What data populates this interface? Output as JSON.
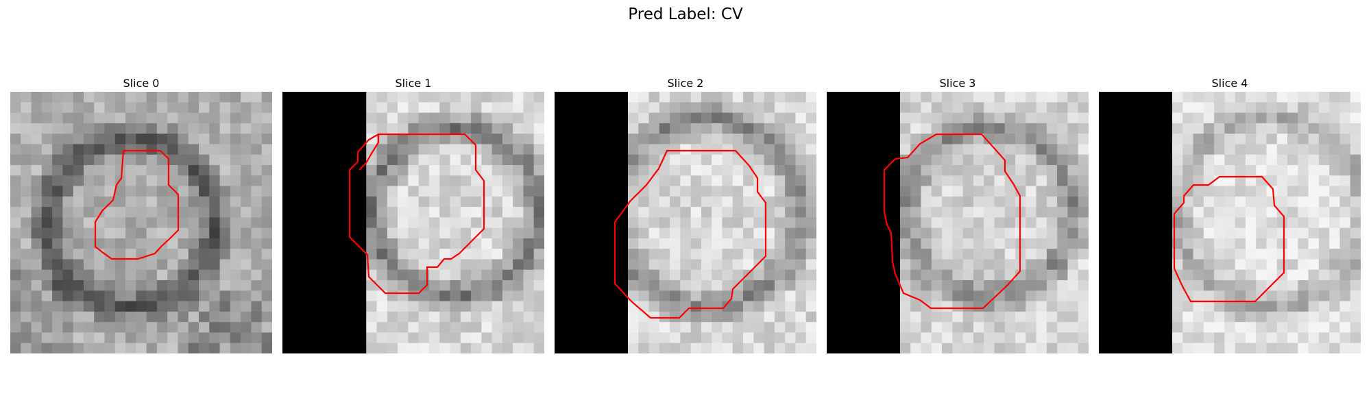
{
  "figure": {
    "title": "Pred Label: CV",
    "contour_color": "#ff0000"
  },
  "slices": [
    {
      "title": "Slice 0"
    },
    {
      "title": "Slice 1"
    },
    {
      "title": "Slice 2"
    },
    {
      "title": "Slice 3"
    },
    {
      "title": "Slice 4"
    }
  ]
}
